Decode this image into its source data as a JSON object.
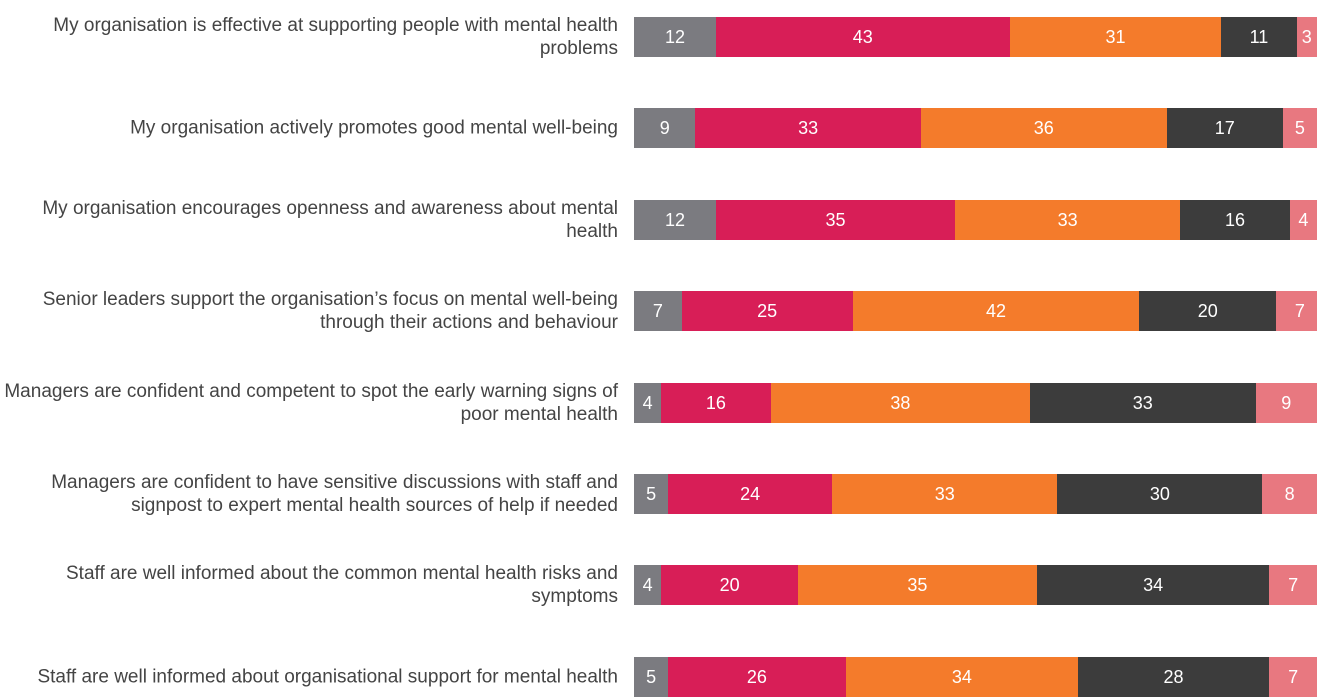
{
  "chart_data": {
    "type": "stacked_barh",
    "categories": [
      "My organisation is effective at supporting people with mental health problems",
      "My organisation actively promotes good mental well-being",
      "My organisation encourages openness and awareness about mental health",
      "Senior leaders support the organisation’s focus on mental well-being through their actions and behaviour",
      "Managers are confident and competent to spot the early warning signs of poor mental health",
      "Managers are confident to have sensitive discussions with staff and signpost to expert mental health sources of help if needed",
      "Staff are well informed about the common mental health risks and symptoms",
      "Staff are well informed about organisational support for mental health"
    ],
    "series": [
      {
        "color": "#7b7b80",
        "values": [
          12,
          9,
          12,
          7,
          4,
          5,
          4,
          5
        ]
      },
      {
        "color": "#d81e57",
        "values": [
          43,
          33,
          35,
          25,
          16,
          24,
          20,
          26
        ]
      },
      {
        "color": "#f47b2b",
        "values": [
          31,
          36,
          33,
          42,
          38,
          33,
          35,
          34
        ]
      },
      {
        "color": "#3c3c3c",
        "values": [
          11,
          17,
          16,
          20,
          33,
          30,
          34,
          28
        ]
      },
      {
        "color": "#e87880",
        "values": [
          3,
          5,
          4,
          7,
          9,
          8,
          7,
          7
        ]
      }
    ],
    "xlim": [
      0,
      100
    ]
  }
}
